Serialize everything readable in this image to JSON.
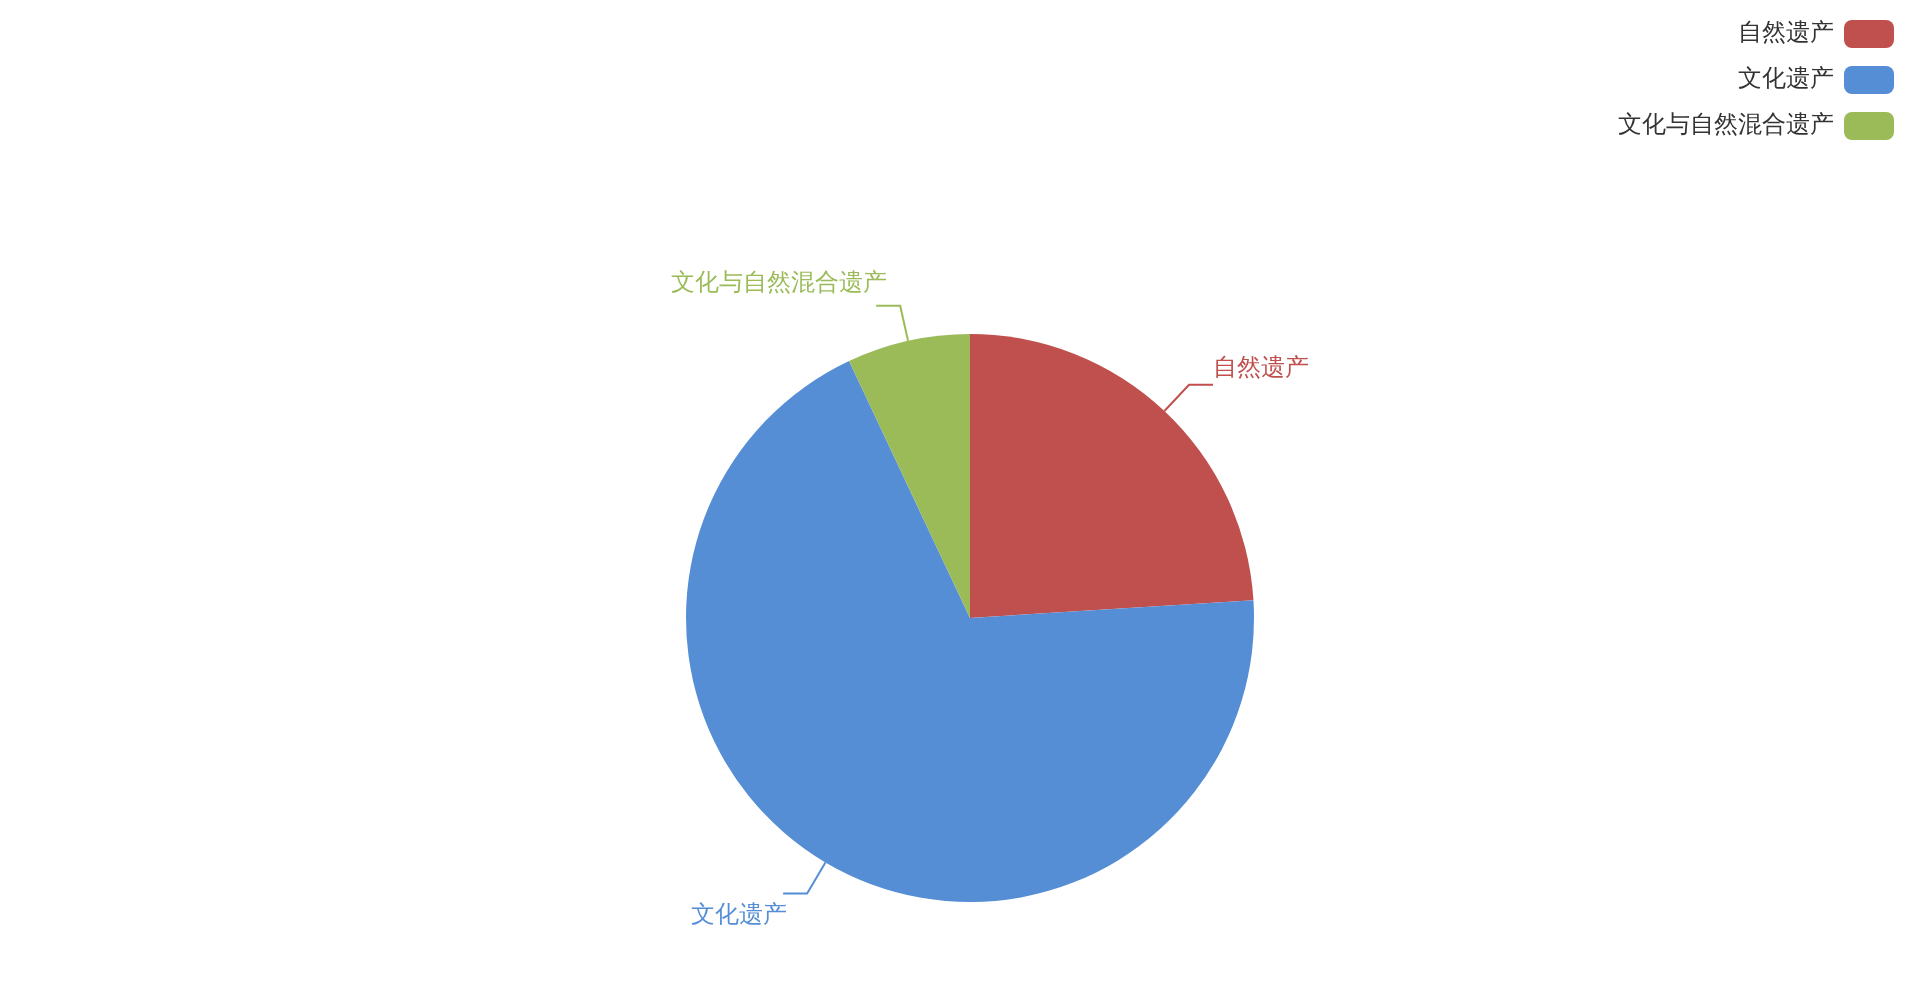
{
  "chart_data": {
    "type": "pie",
    "categories": [
      "自然遗产",
      "文化遗产",
      "文化与自然混合遗产"
    ],
    "values": [
      24,
      69,
      7
    ],
    "colors": [
      "#c0504d",
      "#558ed5",
      "#9bbb59"
    ],
    "legend": "top right"
  }
}
